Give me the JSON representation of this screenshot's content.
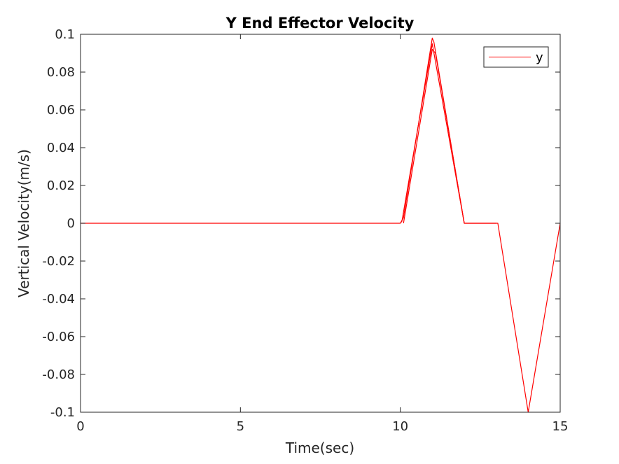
{
  "chart_data": {
    "type": "line",
    "title": "Y End Effector Velocity",
    "xlabel": "Time(sec)",
    "ylabel": "Vertical Velocity(m/s)",
    "xlim": [
      0,
      15
    ],
    "ylim": [
      -0.1,
      0.1
    ],
    "xticks": [
      0,
      5,
      10,
      15
    ],
    "xtick_labels": [
      "0",
      "5",
      "10",
      "15"
    ],
    "yticks": [
      0.1,
      0.08,
      0.06,
      0.04,
      0.02,
      0,
      -0.02,
      -0.04,
      -0.06,
      -0.08,
      -0.1
    ],
    "ytick_labels": [
      "0.1",
      "0.08",
      "0.06",
      "0.04",
      "0.02",
      "0",
      "-0.02",
      "-0.04",
      "-0.06",
      "-0.08",
      "-0.1"
    ],
    "grid": false,
    "legend_position": "top-right",
    "series": [
      {
        "name": "y",
        "color": "#ff0000",
        "x": [
          0,
          10,
          10.1,
          11,
          11.05,
          12,
          13
        ],
        "y": [
          0,
          0,
          0.003,
          0.098,
          0.096,
          0,
          0
        ]
      },
      {
        "color": "#ff0000",
        "x": [
          10,
          10.05,
          11,
          12,
          13.05,
          14,
          15
        ],
        "y": [
          0,
          0.001,
          0.095,
          0,
          0,
          -0.1,
          0
        ]
      },
      {
        "color": "#ff0000",
        "x": [
          10.1,
          11,
          11.1,
          12
        ],
        "y": [
          0,
          0.092,
          0.09,
          0
        ]
      }
    ]
  }
}
